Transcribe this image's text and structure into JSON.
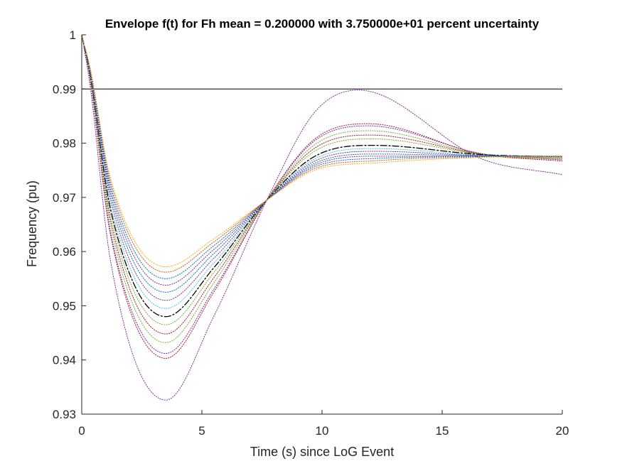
{
  "figure": {
    "title": "Envelope f(t) for Fh mean = 0.200000 with 3.750000e+01 percent uncertainty",
    "xlabel": "Time (s) since LoG Event",
    "ylabel": "Frequency (pu)"
  },
  "chart_data": {
    "type": "line",
    "title": "Envelope f(t) for Fh mean = 0.200000 with 3.750000e+01 percent uncertainty",
    "xlabel": "Time (s) since LoG Event",
    "ylabel": "Frequency (pu)",
    "xlim": [
      0,
      20
    ],
    "ylim": [
      0.93,
      1.0
    ],
    "xticks": [
      0,
      5,
      10,
      15,
      20
    ],
    "yticks": [
      0.93,
      0.94,
      0.95,
      0.96,
      0.97,
      0.98,
      0.99,
      1.0
    ],
    "xtick_labels": [
      "0",
      "5",
      "10",
      "15",
      "20"
    ],
    "ytick_labels": [
      "0.93",
      "0.94",
      "0.95",
      "0.96",
      "0.97",
      "0.98",
      "0.99",
      "1"
    ],
    "grid": false,
    "legend": "none",
    "model": {
      "f0": 1.0,
      "f_final": 0.9775,
      "crossover_value": 0.9695,
      "crossover_time": 7.7,
      "nadir_time": 3.5
    },
    "reference_line": {
      "y": 0.99,
      "color": "#000000",
      "style": "solid"
    },
    "series": [
      {
        "nadir": 0.9326,
        "peak": 0.9898,
        "final": 0.9742,
        "color": "#7E2F8E",
        "style": "dotted"
      },
      {
        "nadir": 0.9403,
        "peak": 0.9836,
        "final": 0.9767,
        "color": "#A2142F",
        "style": "dotted"
      },
      {
        "nadir": 0.9412,
        "peak": 0.9832,
        "final": 0.9769,
        "color": "#7E2F8E",
        "style": "dotted"
      },
      {
        "nadir": 0.9432,
        "peak": 0.9823,
        "final": 0.977,
        "color": "#77AC30",
        "style": "dotted"
      },
      {
        "nadir": 0.9448,
        "peak": 0.9815,
        "final": 0.9772,
        "color": "#A2142F",
        "style": "dotted"
      },
      {
        "nadir": 0.9465,
        "peak": 0.9808,
        "final": 0.9773,
        "color": "#77AC30",
        "style": "dotted"
      },
      {
        "nadir": 0.948,
        "peak": 0.9796,
        "final": 0.9775,
        "color": "#000000",
        "style": "dashed"
      },
      {
        "nadir": 0.9495,
        "peak": 0.979,
        "final": 0.9775,
        "color": "#4DBEEE",
        "style": "dotted"
      },
      {
        "nadir": 0.951,
        "peak": 0.9785,
        "final": 0.9775,
        "color": "#7E2F8E",
        "style": "dotted"
      },
      {
        "nadir": 0.9525,
        "peak": 0.978,
        "final": 0.9776,
        "color": "#0072BD",
        "style": "dotted"
      },
      {
        "nadir": 0.9538,
        "peak": 0.9776,
        "final": 0.9776,
        "color": "#7E2F8E",
        "style": "dotted"
      },
      {
        "nadir": 0.955,
        "peak": 0.9772,
        "final": 0.9776,
        "color": "#0072BD",
        "style": "dotted"
      },
      {
        "nadir": 0.9562,
        "peak": 0.9768,
        "final": 0.9776,
        "color": "#D95319",
        "style": "dotted"
      },
      {
        "nadir": 0.9572,
        "peak": 0.9764,
        "final": 0.9776,
        "color": "#EDB120",
        "style": "dotted"
      }
    ]
  }
}
